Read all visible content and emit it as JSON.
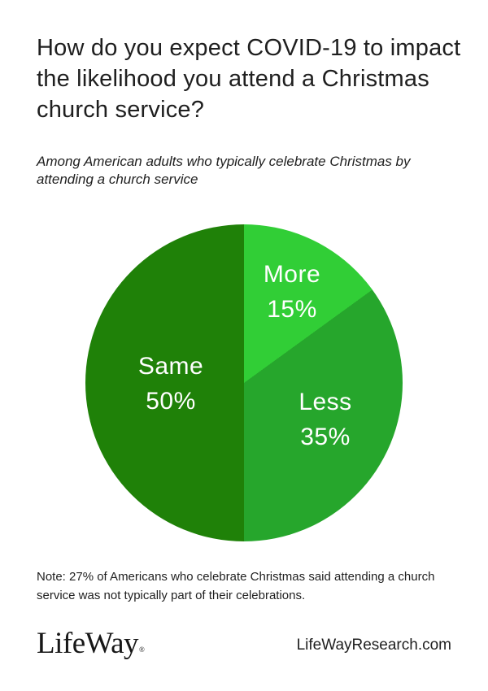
{
  "page": {
    "background_color": "#ffffff",
    "text_color": "#1f1f1f"
  },
  "header": {
    "title": "How do you expect COVID-19 to impact the likelihood you attend a Christmas church service?",
    "subtitle": "Among American adults who typically celebrate Christmas by attending a church service"
  },
  "chart_data": {
    "type": "pie",
    "direction": "clockwise",
    "start_angle_deg": 0,
    "unit": "%",
    "label_color": "#ffffff",
    "slices": [
      {
        "label": "More",
        "value": 15,
        "pct_text": "15%",
        "color": "#31CE36"
      },
      {
        "label": "Less",
        "value": 35,
        "pct_text": "35%",
        "color": "#26A62C"
      },
      {
        "label": "Same",
        "value": 50,
        "pct_text": "50%",
        "color": "#1F8108"
      }
    ]
  },
  "note": "Note: 27% of Americans who celebrate Christmas said attending a church service was not typically part of their celebrations.",
  "footer": {
    "logo_text": "LifeWay",
    "registered_mark": "®",
    "website": "LifeWayResearch.com"
  }
}
